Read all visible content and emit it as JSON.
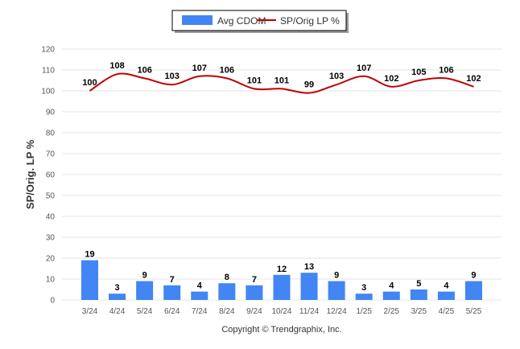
{
  "footer": {
    "copyright": "Copyright © Trendgraphix, Inc."
  },
  "chart_data": {
    "type": "bar",
    "categories": [
      "3/24",
      "4/24",
      "5/24",
      "6/24",
      "7/24",
      "8/24",
      "9/24",
      "10/24",
      "11/24",
      "12/24",
      "1/25",
      "2/25",
      "3/25",
      "4/25",
      "5/25"
    ],
    "series": [
      {
        "name": "Avg CDOM",
        "type": "bar",
        "color": "#4285f4",
        "values": [
          19,
          3,
          9,
          7,
          4,
          8,
          7,
          12,
          13,
          9,
          3,
          4,
          5,
          4,
          9
        ]
      },
      {
        "name": "SP/Orig LP %",
        "type": "line",
        "color": "#c00000",
        "values": [
          100,
          108,
          106,
          103,
          107,
          106,
          101,
          101,
          99,
          103,
          107,
          102,
          105,
          106,
          102
        ]
      }
    ],
    "ylabel": "SP/Orig. LP %",
    "xlabel": "",
    "ylim": [
      0,
      120
    ],
    "yticks": [
      0,
      10,
      20,
      30,
      40,
      50,
      60,
      70,
      80,
      90,
      100,
      110,
      120
    ],
    "grid": true,
    "legend_position": "top"
  }
}
